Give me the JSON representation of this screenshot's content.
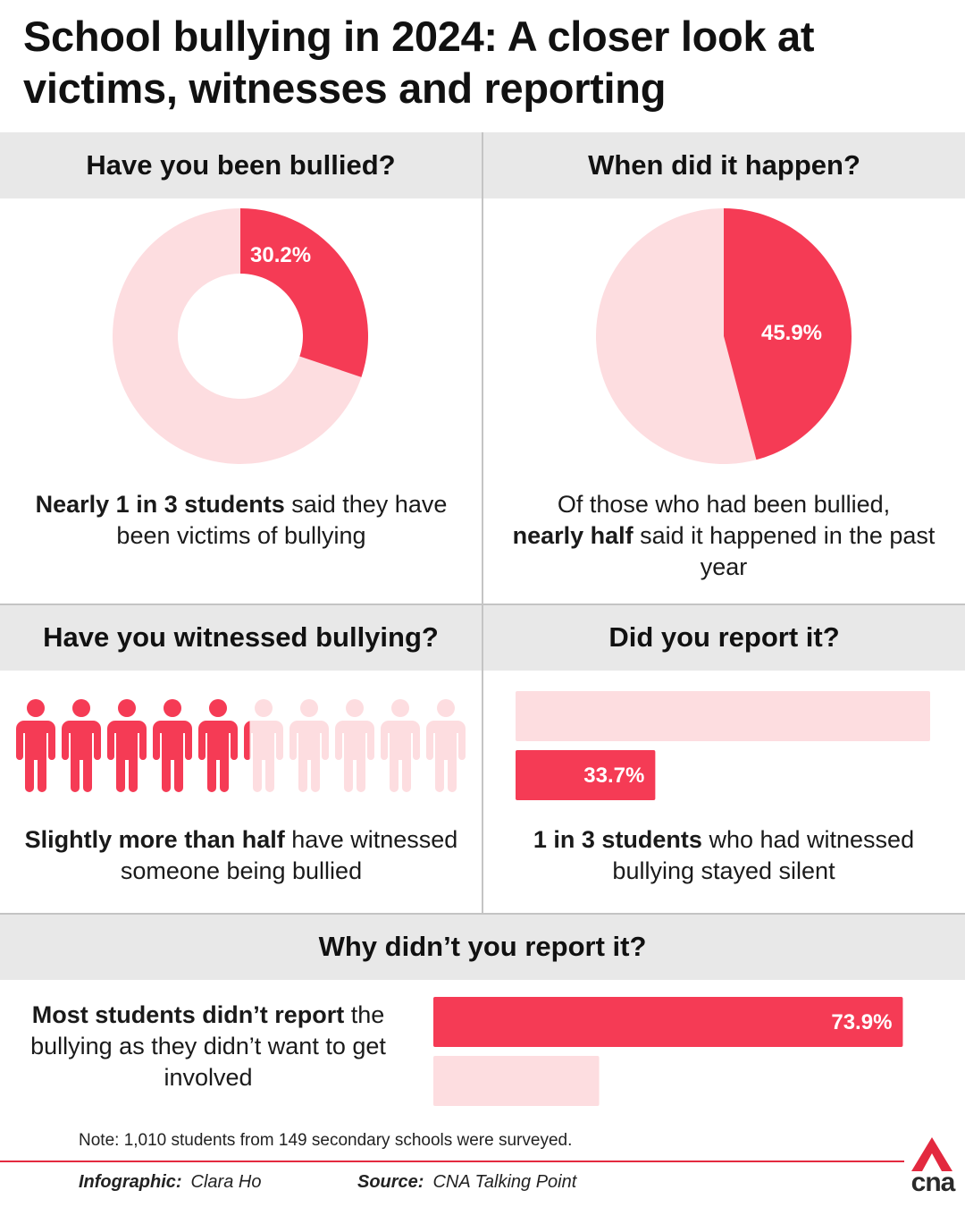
{
  "title": "School bullying in 2024: A closer look at victims, witnesses and reporting",
  "colors": {
    "accent": "#f53b55",
    "light": "#fddde0",
    "band": "#e8e8e8"
  },
  "panels": {
    "bullied": {
      "heading": "Have you been bullied?",
      "caption_bold": "Nearly 1 in 3 students",
      "caption_rest": " said they have been victims of bullying"
    },
    "when": {
      "heading": "When did it happen?",
      "caption_pre": "Of those who had been bullied,",
      "caption_bold": "nearly half",
      "caption_rest": " said it happened in the past year"
    },
    "witnessed": {
      "heading": "Have you witnessed bullying?",
      "caption_bold": "Slightly more than half",
      "caption_rest": " have witnessed someone being bullied"
    },
    "report": {
      "heading": "Did you report it?",
      "caption_bold": "1 in 3 students",
      "caption_rest": " who had witnessed bullying stayed silent"
    },
    "why": {
      "heading": "Why didn’t you report it?",
      "caption_bold": "Most students didn’t report",
      "caption_rest": " the bullying as they didn’t want to get involved"
    }
  },
  "chart_data": [
    {
      "type": "pie",
      "subtype": "donut",
      "values": [
        30.2,
        69.8
      ],
      "highlight_label": "30.2%"
    },
    {
      "type": "pie",
      "values": [
        45.9,
        54.1
      ],
      "highlight_label": "45.9%"
    },
    {
      "type": "pictogram",
      "icon": "person-icon",
      "total_icons": 10,
      "highlighted_share": 0.52
    },
    {
      "type": "bar",
      "orientation": "horizontal",
      "values": [
        100,
        33.7
      ],
      "labels": [
        "",
        "33.7%"
      ]
    },
    {
      "type": "bar",
      "orientation": "horizontal",
      "values": [
        73.9,
        26.1
      ],
      "labels": [
        "73.9%",
        ""
      ]
    }
  ],
  "footer": {
    "note": "Note: 1,010 students from 149 secondary schools were surveyed.",
    "infographic_label": "Infographic:",
    "infographic_value": "Clara Ho",
    "source_label": "Source:",
    "source_value": "CNA Talking Point",
    "logo_text": "cna"
  }
}
